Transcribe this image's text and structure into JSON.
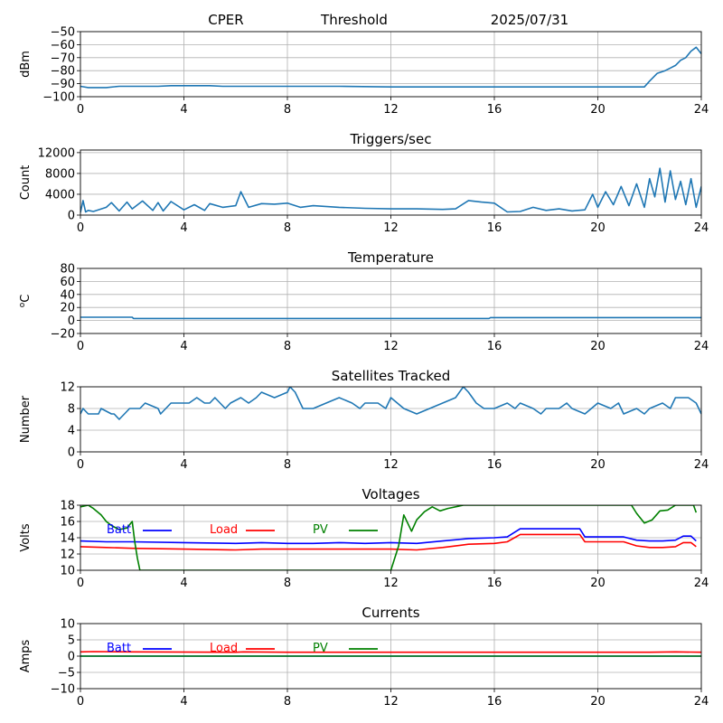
{
  "header": {
    "station": "CPER",
    "kind": "Threshold",
    "date": "2025/07/31"
  },
  "chart_data": [
    {
      "type": "line",
      "title": "",
      "ylabel": "dBm",
      "xlim": [
        0,
        24
      ],
      "ylim": [
        -100,
        -50
      ],
      "xticks": [
        "0",
        "4",
        "8",
        "12",
        "16",
        "20",
        "24"
      ],
      "yticks": [
        "−50",
        "−60",
        "−70",
        "−80",
        "−90",
        "−100"
      ],
      "grid": true,
      "series": [
        {
          "color": "#1f77b4",
          "x": [
            0,
            0.3,
            0.6,
            1.0,
            1.5,
            2.0,
            2.5,
            3.0,
            3.5,
            4.0,
            4.5,
            5.0,
            5.5,
            6.0,
            8.0,
            10.0,
            12.0,
            14.0,
            16.0,
            18.0,
            20.0,
            21.0,
            21.8,
            22.0,
            22.3,
            22.6,
            22.8,
            23.0,
            23.2,
            23.4,
            23.6,
            23.8,
            24.0
          ],
          "y": [
            -92,
            -93,
            -93,
            -93,
            -92,
            -92,
            -92,
            -92,
            -91.5,
            -91.5,
            -91.5,
            -91.5,
            -92,
            -92,
            -92,
            -92,
            -92.5,
            -92.5,
            -92.5,
            -92.5,
            -92.5,
            -92.5,
            -92.5,
            -88,
            -82,
            -80,
            -78,
            -76,
            -72,
            -70,
            -65,
            -62,
            -67
          ]
        }
      ]
    },
    {
      "type": "line",
      "title": "Triggers/sec",
      "ylabel": "Count",
      "xlim": [
        0,
        24
      ],
      "ylim": [
        0,
        12500
      ],
      "xticks": [
        "0",
        "4",
        "8",
        "12",
        "16",
        "20",
        "24"
      ],
      "yticks": [
        "0",
        "4000",
        "8000",
        "12000"
      ],
      "grid": true,
      "series": [
        {
          "color": "#1f77b4",
          "x": [
            0,
            0.1,
            0.2,
            0.3,
            0.5,
            1.0,
            1.2,
            1.5,
            1.8,
            2.0,
            2.4,
            2.8,
            3.0,
            3.2,
            3.5,
            4.0,
            4.4,
            4.8,
            5.0,
            5.5,
            6.0,
            6.2,
            6.5,
            7.0,
            7.5,
            8.0,
            8.5,
            9.0,
            10.0,
            11.0,
            12.0,
            13.0,
            14.0,
            14.5,
            15.0,
            15.5,
            16.0,
            16.5,
            17.0,
            17.5,
            18.0,
            18.5,
            19.0,
            19.5,
            19.8,
            20.0,
            20.3,
            20.6,
            20.9,
            21.2,
            21.5,
            21.8,
            22.0,
            22.2,
            22.4,
            22.6,
            22.8,
            23.0,
            23.2,
            23.4,
            23.6,
            23.8,
            24.0
          ],
          "y": [
            500,
            2800,
            600,
            900,
            700,
            1500,
            2400,
            800,
            2500,
            1200,
            2700,
            900,
            2400,
            800,
            2600,
            1000,
            2000,
            900,
            2200,
            1500,
            1800,
            4500,
            1500,
            2200,
            2100,
            2300,
            1500,
            1800,
            1500,
            1300,
            1200,
            1200,
            1100,
            1200,
            2800,
            2500,
            2300,
            600,
            700,
            1500,
            900,
            1200,
            800,
            1000,
            4000,
            1500,
            4500,
            2000,
            5500,
            1800,
            6000,
            1500,
            7000,
            3500,
            9000,
            2500,
            8500,
            3000,
            6500,
            2000,
            7000,
            1500,
            5500
          ]
        }
      ]
    },
    {
      "type": "line",
      "title": "Temperature",
      "ylabel": "°C",
      "ylabel_display": "oC",
      "xlim": [
        0,
        24
      ],
      "ylim": [
        -20,
        80
      ],
      "xticks": [
        "0",
        "4",
        "8",
        "12",
        "16",
        "20",
        "24"
      ],
      "yticks": [
        "80",
        "60",
        "40",
        "20",
        "0",
        "−20"
      ],
      "grid": true,
      "series": [
        {
          "color": "#1f77b4",
          "x": [
            0,
            2.0,
            2.05,
            15.8,
            15.85,
            24
          ],
          "y": [
            5,
            5,
            3,
            3,
            4.5,
            4.5
          ]
        }
      ]
    },
    {
      "type": "line",
      "title": "Satellites Tracked",
      "ylabel": "Number",
      "xlim": [
        0,
        24
      ],
      "ylim": [
        0,
        12
      ],
      "xticks": [
        "0",
        "4",
        "8",
        "12",
        "16",
        "20",
        "24"
      ],
      "yticks": [
        "12",
        "8",
        "4",
        "0"
      ],
      "grid": true,
      "series": [
        {
          "color": "#1f77b4",
          "x": [
            0,
            0.1,
            0.3,
            0.7,
            0.8,
            1.2,
            1.3,
            1.5,
            1.7,
            1.9,
            2.3,
            2.5,
            3.0,
            3.1,
            3.5,
            4.0,
            4.2,
            4.5,
            4.8,
            5.0,
            5.2,
            5.6,
            5.8,
            6.2,
            6.5,
            6.8,
            7.0,
            7.5,
            8.0,
            8.1,
            8.3,
            8.5,
            8.6,
            9.0,
            9.5,
            10.0,
            10.5,
            10.8,
            11.0,
            11.5,
            11.8,
            12.0,
            12.5,
            13.0,
            13.5,
            14.0,
            14.5,
            14.8,
            15.0,
            15.3,
            15.6,
            16.0,
            16.5,
            16.8,
            17.0,
            17.5,
            17.8,
            18.0,
            18.5,
            18.8,
            19.0,
            19.5,
            20.0,
            20.5,
            20.8,
            21.0,
            21.5,
            21.8,
            22.0,
            22.5,
            22.8,
            23.0,
            23.5,
            23.8,
            24.0
          ],
          "y": [
            7,
            8,
            7,
            7,
            8,
            7,
            7,
            6,
            7,
            8,
            8,
            9,
            8,
            7,
            9,
            9,
            9,
            10,
            9,
            9,
            10,
            8,
            9,
            10,
            9,
            10,
            11,
            10,
            11,
            12,
            11,
            9,
            8,
            8,
            9,
            10,
            9,
            8,
            9,
            9,
            8,
            10,
            8,
            7,
            8,
            9,
            10,
            12,
            11,
            9,
            8,
            8,
            9,
            8,
            9,
            8,
            7,
            8,
            8,
            9,
            8,
            7,
            9,
            8,
            9,
            7,
            8,
            7,
            8,
            9,
            8,
            10,
            10,
            9,
            7
          ]
        }
      ]
    },
    {
      "type": "line",
      "title": "Voltages",
      "ylabel": "Volts",
      "xlim": [
        0,
        24
      ],
      "ylim": [
        10,
        18
      ],
      "xticks": [
        "0",
        "4",
        "8",
        "12",
        "16",
        "20",
        "24"
      ],
      "yticks": [
        "18",
        "16",
        "14",
        "12",
        "10"
      ],
      "grid": true,
      "legend": [
        "Batt",
        "Load",
        "PV"
      ],
      "series": [
        {
          "name": "Batt",
          "color": "#0000ff",
          "x": [
            0,
            1,
            2,
            4,
            6,
            7,
            8,
            9,
            10,
            11,
            12,
            13,
            14,
            15,
            16,
            16.5,
            17.0,
            17.5,
            18,
            19,
            19.3,
            19.5,
            20,
            21,
            21.5,
            22,
            22.5,
            23,
            23.3,
            23.6,
            23.8
          ],
          "y": [
            13.6,
            13.5,
            13.5,
            13.4,
            13.3,
            13.4,
            13.3,
            13.3,
            13.4,
            13.3,
            13.4,
            13.3,
            13.6,
            13.9,
            14.0,
            14.1,
            15.1,
            15.1,
            15.1,
            15.1,
            15.1,
            14.1,
            14.1,
            14.1,
            13.7,
            13.6,
            13.6,
            13.7,
            14.2,
            14.2,
            13.6
          ]
        },
        {
          "name": "Load",
          "color": "#ff0000",
          "x": [
            0,
            1,
            2,
            4,
            6,
            7,
            8,
            9,
            10,
            11,
            12,
            13,
            14,
            15,
            16,
            16.5,
            17.0,
            17.5,
            18,
            19,
            19.3,
            19.5,
            20,
            21,
            21.5,
            22,
            22.5,
            23,
            23.3,
            23.6,
            23.8
          ],
          "y": [
            12.9,
            12.8,
            12.7,
            12.6,
            12.5,
            12.6,
            12.6,
            12.6,
            12.6,
            12.6,
            12.6,
            12.5,
            12.8,
            13.2,
            13.3,
            13.5,
            14.4,
            14.4,
            14.4,
            14.4,
            14.4,
            13.5,
            13.5,
            13.5,
            13.0,
            12.8,
            12.8,
            12.9,
            13.4,
            13.4,
            12.9
          ]
        },
        {
          "name": "PV",
          "color": "#008000",
          "x": [
            0,
            0.3,
            0.5,
            0.8,
            1.0,
            1.2,
            1.5,
            1.8,
            2.0,
            2.1,
            2.2,
            2.3,
            12.0,
            12.3,
            12.5,
            12.8,
            13.0,
            13.3,
            13.6,
            13.9,
            14.2,
            14.8,
            21.3,
            21.5,
            21.8,
            22.1,
            22.4,
            22.7,
            23.0,
            23.5,
            23.7,
            23.8
          ],
          "y": [
            17.8,
            18.0,
            17.6,
            16.8,
            16.0,
            15.5,
            15.0,
            15.2,
            16.0,
            13.5,
            11.5,
            10.0,
            10.0,
            13.0,
            16.8,
            14.8,
            16.2,
            17.2,
            17.8,
            17.3,
            17.6,
            18.0,
            18.0,
            17.0,
            15.8,
            16.2,
            17.3,
            17.4,
            18.0,
            18.0,
            18.0,
            17.1
          ]
        }
      ]
    },
    {
      "type": "line",
      "title": "Currents",
      "ylabel": "Amps",
      "xlim": [
        0,
        24
      ],
      "ylim": [
        -10,
        10
      ],
      "xticks": [
        "0",
        "4",
        "8",
        "12",
        "16",
        "20",
        "24"
      ],
      "yticks": [
        "10",
        "5",
        "0",
        "−5",
        "−10"
      ],
      "grid": true,
      "legend": [
        "Batt",
        "Load",
        "PV"
      ],
      "series": [
        {
          "name": "Batt",
          "color": "#0000ff",
          "x": [
            0,
            24
          ],
          "y": [
            0,
            0
          ]
        },
        {
          "name": "Load",
          "color": "#ff0000",
          "x": [
            0,
            0.5,
            2,
            6,
            6.3,
            8,
            12,
            16,
            20,
            22,
            23,
            24
          ],
          "y": [
            1.3,
            1.4,
            1.3,
            1.2,
            1.3,
            1.2,
            1.2,
            1.2,
            1.2,
            1.2,
            1.3,
            1.2
          ]
        },
        {
          "name": "PV",
          "color": "#008000",
          "x": [
            0,
            24
          ],
          "y": [
            0,
            0
          ]
        }
      ]
    }
  ]
}
